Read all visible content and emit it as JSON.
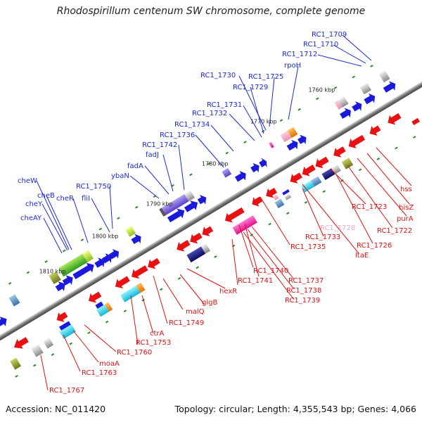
{
  "title": "Rhodospirillum centenum SW chromosome, complete genome",
  "footer": {
    "accession": "Accession: NC_011420",
    "topology": "Topology: circular; Length: 4,355,543 bp; Genes: 4,066"
  },
  "colors": {
    "backbone": "#777777",
    "upper_label": "#1a2bd6",
    "lower_label": "#e01010",
    "lower_label_faded": "#f2a6c4"
  },
  "ticks": [
    "1760 kbp",
    "1770 kbp",
    "1780 kbp",
    "1790 kbp",
    "1800 kbp",
    "1810 kbp"
  ],
  "upper_labels": [
    "RC1_1709",
    "RC1_1710",
    "RC1_1712",
    "rpoH",
    "RC1_1725",
    "RC1_1730",
    "RC1_1729",
    "RC1_1731",
    "RC1_1732",
    "RC1_1734",
    "RC1_1736",
    "RC1_1742",
    "fadJ",
    "fadA",
    "ybaN",
    "RC1_1750",
    "fliI",
    "cheR",
    "cheW",
    "cheB",
    "cheY",
    "cheAY"
  ],
  "lower_labels": [
    "hss",
    "hisZ",
    "purA",
    "RC1_1722",
    "RC1_1723",
    "RC1_1726",
    "RC1_1728",
    "ltaE",
    "RC1_1733",
    "RC1_1735",
    "RC1_1740",
    "RC1_1737",
    "RC1_1738",
    "RC1_1739",
    "RC1_1741",
    "hexR",
    "glgB",
    "malQ",
    "RC1_1749",
    "ctrA",
    "RC1_1753",
    "RC1_1760",
    "moaA",
    "RC1_1763",
    "RC1_1767"
  ]
}
